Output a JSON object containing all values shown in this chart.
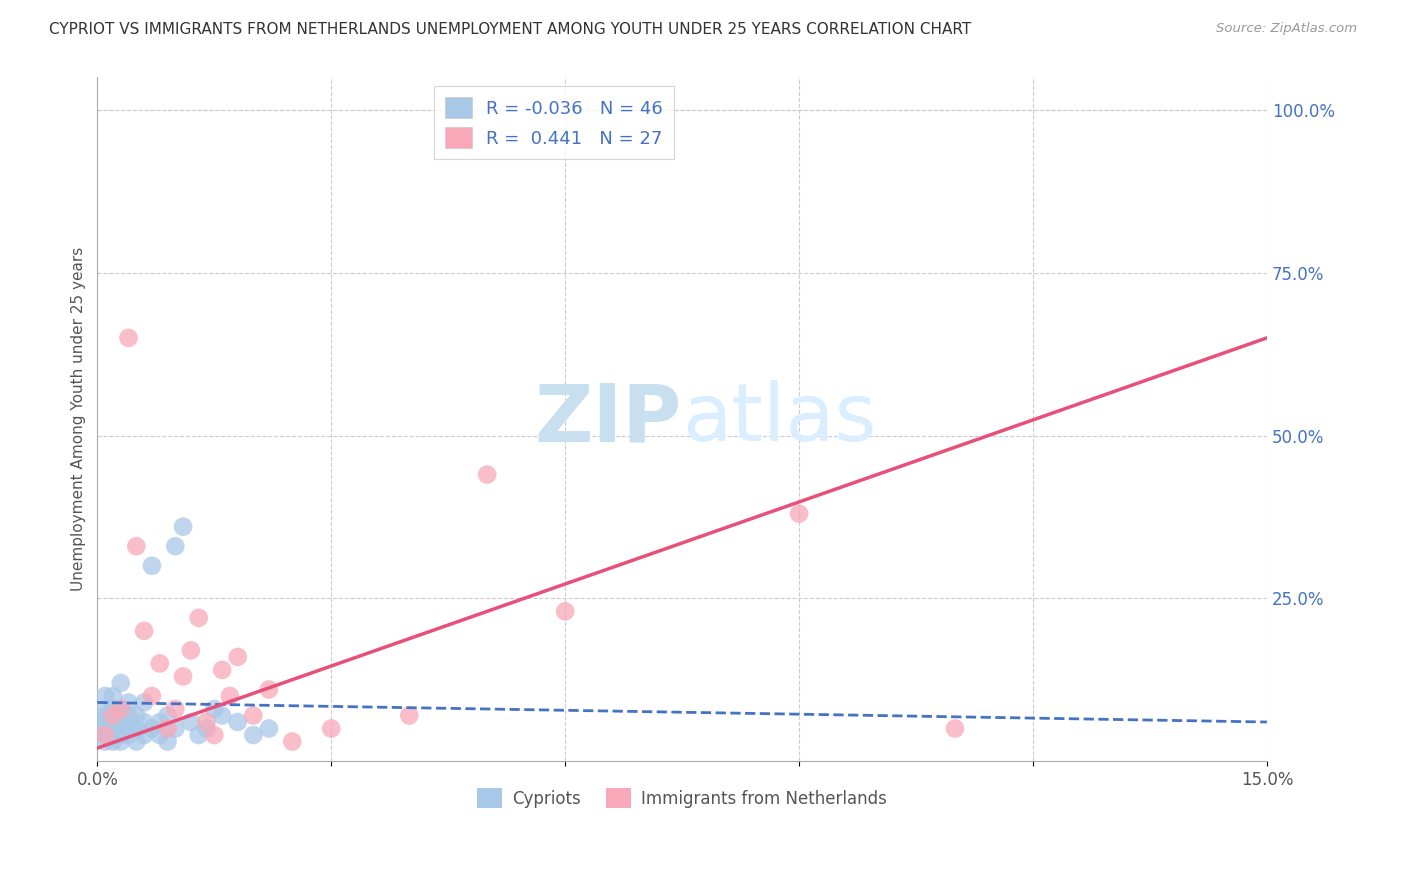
{
  "title": "CYPRIOT VS IMMIGRANTS FROM NETHERLANDS UNEMPLOYMENT AMONG YOUTH UNDER 25 YEARS CORRELATION CHART",
  "source": "Source: ZipAtlas.com",
  "ylabel": "Unemployment Among Youth under 25 years",
  "xlim": [
    0.0,
    0.15
  ],
  "ylim": [
    0.0,
    1.05
  ],
  "xticks": [
    0.0,
    0.03,
    0.06,
    0.09,
    0.12,
    0.15
  ],
  "xtick_labels": [
    "0.0%",
    "",
    "",
    "",
    "",
    "15.0%"
  ],
  "yticks_right": [
    0.25,
    0.5,
    0.75,
    1.0
  ],
  "ytick_labels_right": [
    "25.0%",
    "50.0%",
    "75.0%",
    "100.0%"
  ],
  "cypriot_R": "-0.036",
  "cypriot_N": "46",
  "netherlands_R": "0.441",
  "netherlands_N": "27",
  "cypriot_color": "#a8c8e8",
  "netherlands_color": "#f8a8b8",
  "cypriot_line_color": "#4472c4",
  "netherlands_line_color": "#e8507a",
  "legend_color": "#4472c4",
  "watermark_color": "#daeeff",
  "cypriot_x": [
    0.001,
    0.001,
    0.001,
    0.001,
    0.001,
    0.001,
    0.001,
    0.002,
    0.002,
    0.002,
    0.002,
    0.002,
    0.002,
    0.003,
    0.003,
    0.003,
    0.003,
    0.003,
    0.003,
    0.004,
    0.004,
    0.004,
    0.004,
    0.005,
    0.005,
    0.005,
    0.006,
    0.006,
    0.006,
    0.007,
    0.007,
    0.008,
    0.008,
    0.009,
    0.009,
    0.01,
    0.01,
    0.011,
    0.012,
    0.013,
    0.014,
    0.015,
    0.016,
    0.018,
    0.02,
    0.022
  ],
  "cypriot_y": [
    0.03,
    0.04,
    0.05,
    0.06,
    0.07,
    0.08,
    0.1,
    0.03,
    0.04,
    0.05,
    0.06,
    0.08,
    0.1,
    0.03,
    0.04,
    0.05,
    0.06,
    0.08,
    0.12,
    0.04,
    0.05,
    0.07,
    0.09,
    0.03,
    0.05,
    0.07,
    0.04,
    0.06,
    0.09,
    0.05,
    0.3,
    0.04,
    0.06,
    0.03,
    0.07,
    0.05,
    0.33,
    0.36,
    0.06,
    0.04,
    0.05,
    0.08,
    0.07,
    0.06,
    0.04,
    0.05
  ],
  "netherlands_x": [
    0.001,
    0.002,
    0.003,
    0.004,
    0.005,
    0.006,
    0.007,
    0.008,
    0.009,
    0.01,
    0.011,
    0.012,
    0.013,
    0.014,
    0.015,
    0.016,
    0.017,
    0.018,
    0.02,
    0.022,
    0.025,
    0.03,
    0.04,
    0.05,
    0.06,
    0.09,
    0.11
  ],
  "netherlands_y": [
    0.04,
    0.07,
    0.08,
    0.65,
    0.33,
    0.2,
    0.1,
    0.15,
    0.05,
    0.08,
    0.13,
    0.17,
    0.22,
    0.06,
    0.04,
    0.14,
    0.1,
    0.16,
    0.07,
    0.11,
    0.03,
    0.05,
    0.07,
    0.44,
    0.23,
    0.38,
    0.05
  ],
  "cypriot_slope": -0.036,
  "cypriot_intercept": 0.072,
  "netherlands_slope": 4.4,
  "netherlands_intercept": 0.02
}
